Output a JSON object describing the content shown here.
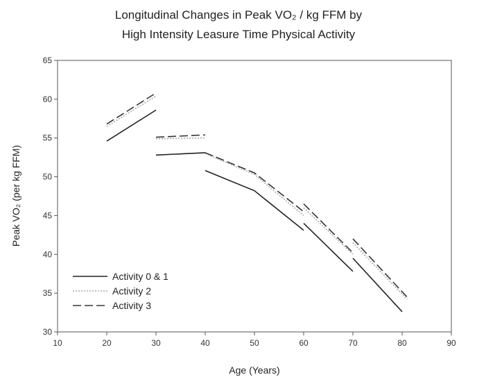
{
  "chart_data": {
    "type": "line",
    "title": [
      "Longitudinal Changes in Peak VO₂ / kg FFM by",
      "High Intensity Leasure Time Physical Activity"
    ],
    "xlabel": "Age (Years)",
    "ylabel": "Peak VO₂ (per kg FFM)",
    "xlim": [
      10,
      90
    ],
    "ylim": [
      30,
      65
    ],
    "xticks": [
      10,
      20,
      30,
      40,
      50,
      60,
      70,
      80,
      90
    ],
    "yticks": [
      30,
      35,
      40,
      45,
      50,
      55,
      60,
      65
    ],
    "grid": false,
    "legend_position": "bottom-left",
    "series": [
      {
        "name": "Activity 0 & 1",
        "style": "solid",
        "color": "#222222",
        "segments": [
          [
            [
              20,
              54.6
            ],
            [
              30,
              58.6
            ]
          ],
          [
            [
              30,
              52.8
            ],
            [
              40,
              53.1
            ]
          ],
          [
            [
              40,
              50.8
            ],
            [
              50,
              48.2
            ],
            [
              60,
              43.1
            ]
          ],
          [
            [
              60,
              44.0
            ],
            [
              70,
              37.8
            ]
          ],
          [
            [
              70,
              39.5
            ],
            [
              80,
              32.6
            ]
          ]
        ]
      },
      {
        "name": "Activity 2",
        "style": "dotted",
        "color": "#aaaaaa",
        "segments": [
          [
            [
              20,
              56.5
            ],
            [
              30,
              60.4
            ]
          ],
          [
            [
              30,
              54.9
            ],
            [
              40,
              55.0
            ]
          ],
          [
            [
              40,
              53.0
            ],
            [
              50,
              50.3
            ],
            [
              60,
              45.0
            ]
          ],
          [
            [
              60,
              46.0
            ],
            [
              70,
              40.0
            ]
          ],
          [
            [
              70,
              41.5
            ],
            [
              81,
              34.2
            ]
          ]
        ]
      },
      {
        "name": "Activity 3",
        "style": "dashed",
        "color": "#333333",
        "segments": [
          [
            [
              20,
              56.8
            ],
            [
              30,
              60.8
            ]
          ],
          [
            [
              30,
              55.1
            ],
            [
              40,
              55.4
            ]
          ],
          [
            [
              40,
              53.1
            ],
            [
              50,
              50.5
            ],
            [
              60,
              45.5
            ]
          ],
          [
            [
              60,
              46.5
            ],
            [
              70,
              40.2
            ]
          ],
          [
            [
              70,
              42.0
            ],
            [
              81,
              34.5
            ]
          ]
        ]
      }
    ]
  }
}
